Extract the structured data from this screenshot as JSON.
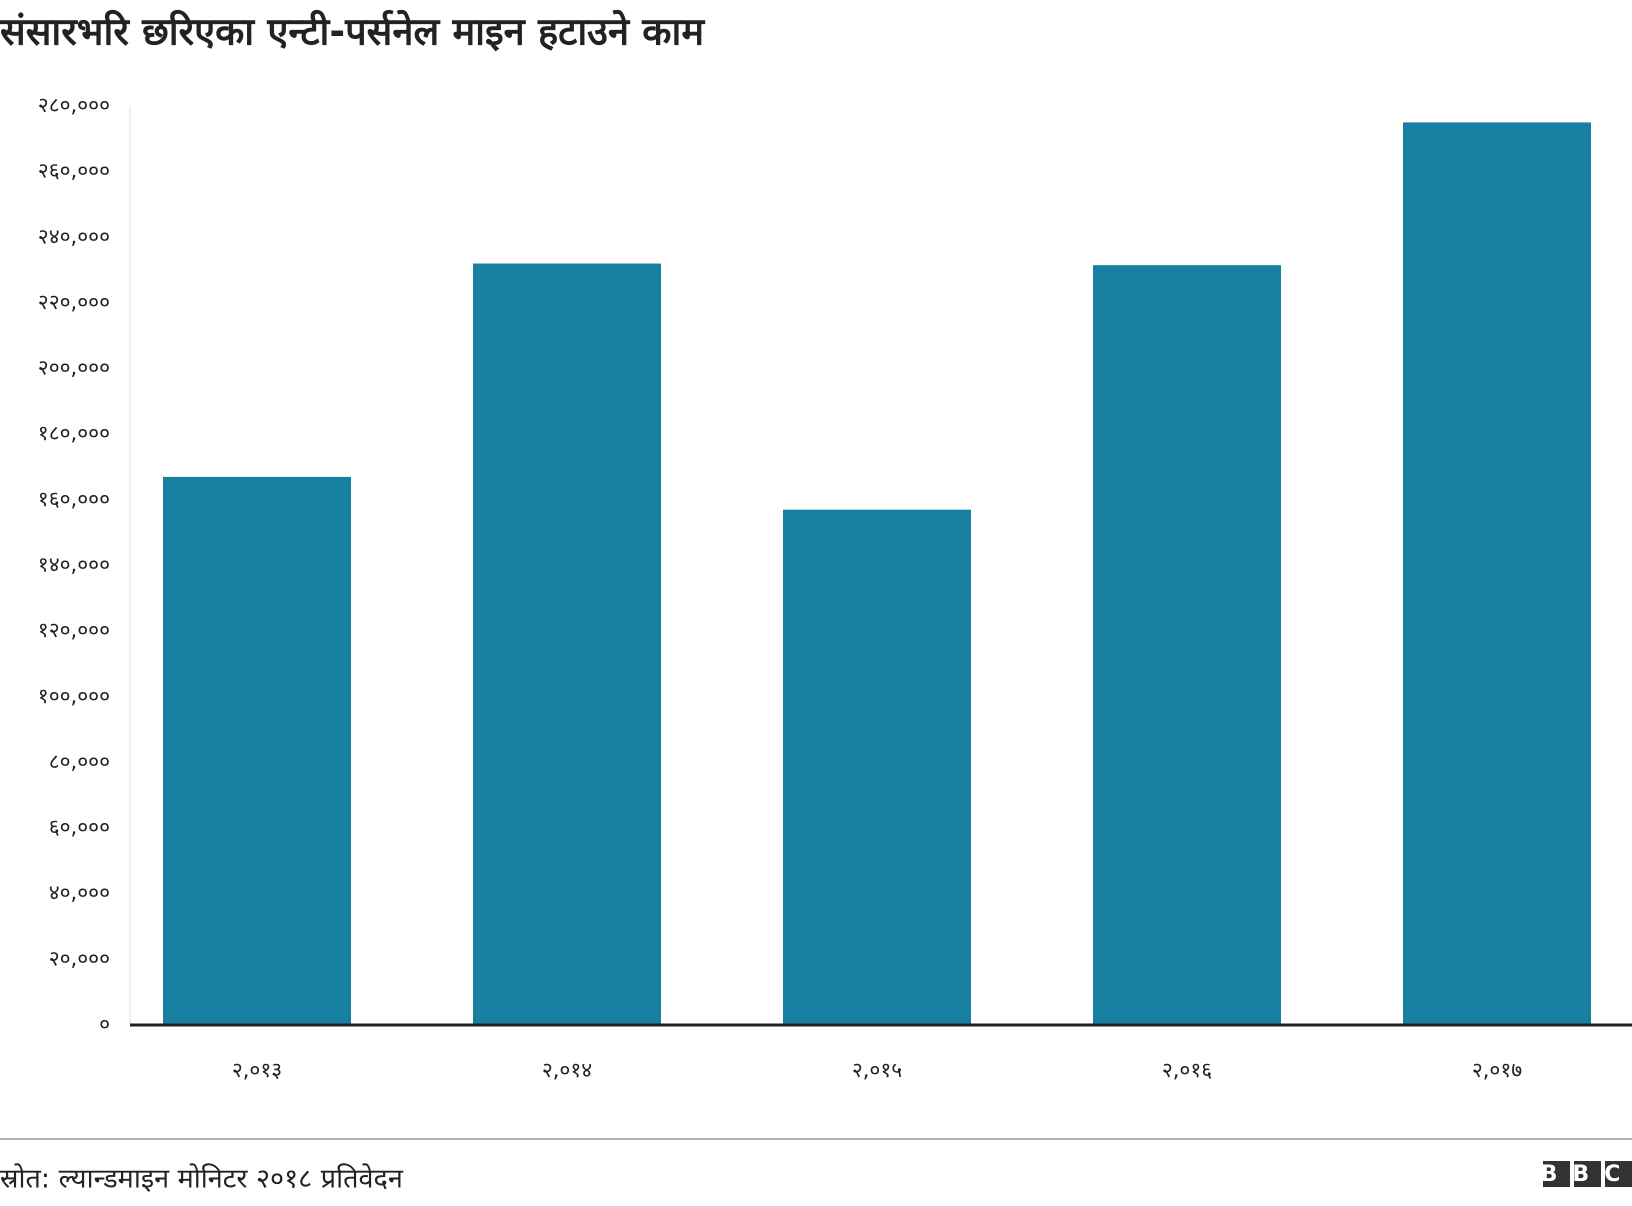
{
  "chart_data": {
    "type": "bar",
    "title": "संसारभरि छरिएका एन्टी-पर्सनेल माइन हटाउने काम",
    "categories": [
      "२,०१३",
      "२,०१४",
      "२,०१५",
      "२,०१६",
      "२,०१७"
    ],
    "values": [
      167000,
      232000,
      157000,
      231500,
      275000
    ],
    "color": "#1780a1",
    "ylim": [
      0,
      280000
    ],
    "yticks": [
      {
        "value": 0,
        "label": "०"
      },
      {
        "value": 20000,
        "label": "२०,०००"
      },
      {
        "value": 40000,
        "label": "४०,०००"
      },
      {
        "value": 60000,
        "label": "६०,०००"
      },
      {
        "value": 80000,
        "label": "८०,०००"
      },
      {
        "value": 100000,
        "label": "१००,०००"
      },
      {
        "value": 120000,
        "label": "१२०,०००"
      },
      {
        "value": 140000,
        "label": "१४०,०००"
      },
      {
        "value": 160000,
        "label": "१६०,०००"
      },
      {
        "value": 180000,
        "label": "१८०,०००"
      },
      {
        "value": 200000,
        "label": "२००,०००"
      },
      {
        "value": 220000,
        "label": "२२०,०००"
      },
      {
        "value": 240000,
        "label": "२४०,०००"
      },
      {
        "value": 260000,
        "label": "२६०,०००"
      },
      {
        "value": 280000,
        "label": "२८०,०००"
      }
    ],
    "grid": false,
    "source": "स्रोत: ल्यान्डमाइन मोनिटर २०१८ प्रतिवेदन",
    "logo": "BBC"
  }
}
